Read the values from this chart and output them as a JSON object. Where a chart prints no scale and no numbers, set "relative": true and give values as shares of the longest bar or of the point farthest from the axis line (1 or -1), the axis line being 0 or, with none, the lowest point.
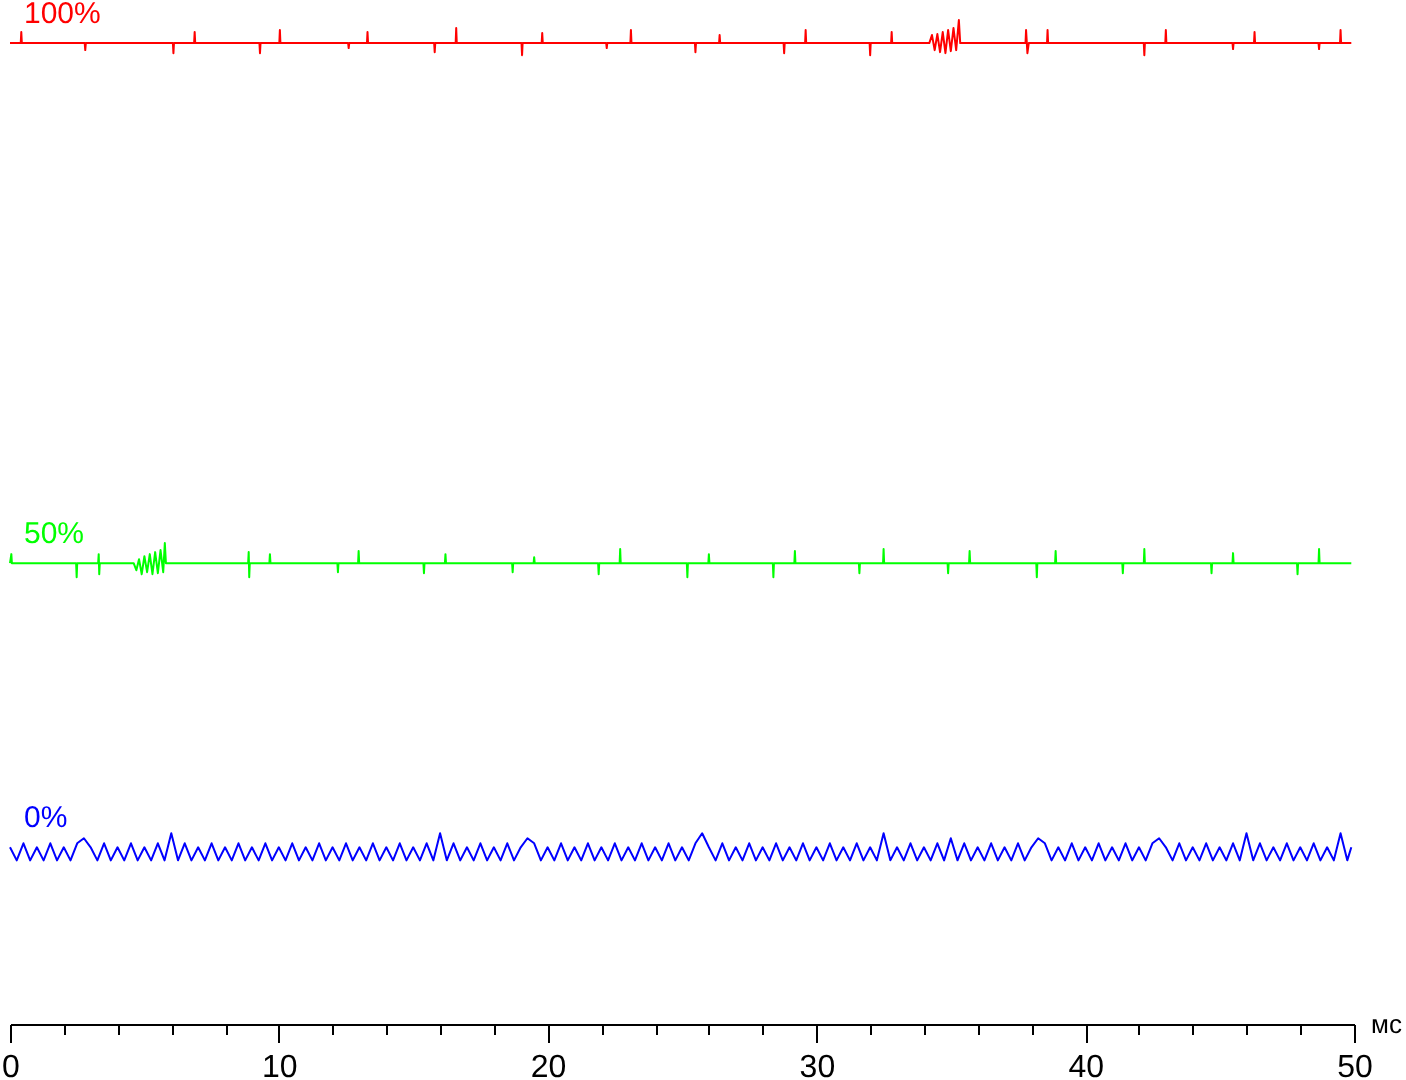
{
  "chart_data": {
    "type": "line",
    "xlabel": "мс",
    "relative": true,
    "xlim": [
      0,
      50
    ],
    "xticks": [
      0,
      {
        "value": 2,
        "label": null
      },
      {
        "value": 4,
        "label": null
      },
      {
        "value": 6,
        "label": null
      },
      {
        "value": 8,
        "label": null
      },
      10,
      {
        "value": 12,
        "label": null
      },
      {
        "value": 14,
        "label": null
      },
      {
        "value": 16,
        "label": null
      },
      {
        "value": 18,
        "label": null
      },
      20,
      {
        "value": 22,
        "label": null
      },
      {
        "value": 24,
        "label": null
      },
      {
        "value": 26,
        "label": null
      },
      {
        "value": 28,
        "label": null
      },
      30,
      {
        "value": 32,
        "label": null
      },
      {
        "value": 34,
        "label": null
      },
      {
        "value": 36,
        "label": null
      },
      {
        "value": 38,
        "label": null
      },
      40,
      {
        "value": 42,
        "label": null
      },
      {
        "value": 44,
        "label": null
      },
      {
        "value": 46,
        "label": null
      },
      {
        "value": 48,
        "label": null
      },
      50
    ],
    "series": [
      {
        "name": "100%",
        "color": "#ff0000",
        "x": [
          0,
          0.4,
          0.42,
          0.44,
          2.78,
          2.8,
          2.82,
          6.06,
          6.08,
          6.1,
          6.85,
          6.87,
          6.89,
          9.28,
          9.3,
          9.32,
          10.02,
          10.04,
          10.06,
          12.58,
          12.6,
          12.62,
          13.28,
          13.3,
          13.32,
          15.78,
          15.8,
          15.82,
          16.58,
          16.6,
          16.62,
          19.03,
          19.05,
          19.07,
          19.78,
          19.8,
          19.82,
          22.18,
          22.2,
          22.22,
          23.08,
          23.1,
          23.12,
          25.48,
          25.5,
          25.52,
          26.38,
          26.4,
          26.42,
          28.78,
          28.8,
          28.82,
          29.58,
          29.6,
          29.62,
          31.98,
          32,
          32.02,
          32.78,
          32.8,
          32.82,
          34.2,
          34.3,
          34.4,
          34.5,
          34.6,
          34.7,
          34.8,
          34.9,
          35,
          35.1,
          35.2,
          35.3,
          35.35,
          37.78,
          37.8,
          37.85,
          37.9,
          38.58,
          38.6,
          38.62,
          42.18,
          42.2,
          42.22,
          42.98,
          43,
          43.02,
          45.48,
          45.5,
          45.52,
          46.28,
          46.3,
          46.32,
          48.68,
          48.7,
          48.72,
          49.48,
          49.5,
          49.52,
          49.9
        ],
        "values": [
          0.977,
          0.977,
          0.988,
          0.977,
          0.977,
          0.97,
          0.977,
          0.977,
          0.967,
          0.977,
          0.977,
          0.988,
          0.977,
          0.977,
          0.967,
          0.977,
          0.977,
          0.99,
          0.977,
          0.977,
          0.972,
          0.977,
          0.977,
          0.988,
          0.977,
          0.977,
          0.968,
          0.977,
          0.977,
          0.992,
          0.977,
          0.977,
          0.965,
          0.977,
          0.977,
          0.987,
          0.977,
          0.977,
          0.972,
          0.977,
          0.977,
          0.99,
          0.977,
          0.977,
          0.968,
          0.977,
          0.977,
          0.985,
          0.977,
          0.977,
          0.967,
          0.977,
          0.977,
          0.99,
          0.977,
          0.977,
          0.965,
          0.977,
          0.977,
          0.988,
          0.977,
          0.977,
          0.985,
          0.97,
          0.986,
          0.968,
          0.988,
          0.967,
          0.99,
          0.969,
          0.992,
          0.97,
          1,
          0.977,
          0.977,
          0.99,
          0.967,
          0.977,
          0.977,
          0.99,
          0.977,
          0.977,
          0.965,
          0.977,
          0.977,
          0.99,
          0.977,
          0.977,
          0.971,
          0.977,
          0.977,
          0.988,
          0.977,
          0.977,
          0.971,
          0.977,
          0.977,
          0.99,
          0.977,
          0.977
        ]
      },
      {
        "name": "50%",
        "color": "#00ff00",
        "x": [
          0,
          0.05,
          0.07,
          2.46,
          2.48,
          2.5,
          3.28,
          3.3,
          3.32,
          3.34,
          4.6,
          4.7,
          4.8,
          4.9,
          5,
          5.1,
          5.2,
          5.3,
          5.4,
          5.5,
          5.6,
          5.7,
          5.76,
          5.8,
          8.86,
          8.88,
          8.9,
          8.92,
          9.65,
          9.67,
          9.69,
          12.18,
          12.2,
          12.22,
          12.95,
          12.97,
          12.99,
          15.38,
          15.4,
          15.42,
          16.18,
          16.2,
          16.22,
          18.68,
          18.7,
          18.72,
          19.48,
          19.5,
          19.52,
          21.88,
          21.9,
          21.92,
          22.68,
          22.7,
          22.72,
          25.18,
          25.2,
          25.22,
          25.98,
          26,
          26.02,
          28.38,
          28.4,
          28.42,
          29.18,
          29.2,
          29.22,
          31.58,
          31.6,
          31.62,
          32.48,
          32.5,
          32.52,
          34.88,
          34.9,
          34.92,
          35.68,
          35.7,
          35.72,
          38.18,
          38.2,
          38.22,
          38.88,
          38.9,
          38.92,
          41.38,
          41.4,
          41.42,
          42.18,
          42.2,
          42.22,
          44.68,
          44.7,
          44.72,
          45.48,
          45.5,
          45.52,
          47.88,
          47.9,
          47.92,
          48.68,
          48.7,
          48.72,
          49.9
        ],
        "values": [
          0.459,
          0.468,
          0.459,
          0.459,
          0.445,
          0.459,
          0.459,
          0.468,
          0.448,
          0.459,
          0.459,
          0.452,
          0.463,
          0.448,
          0.466,
          0.45,
          0.468,
          0.448,
          0.47,
          0.449,
          0.472,
          0.45,
          0.479,
          0.459,
          0.459,
          0.47,
          0.445,
          0.459,
          0.459,
          0.468,
          0.459,
          0.459,
          0.45,
          0.459,
          0.459,
          0.471,
          0.459,
          0.459,
          0.449,
          0.459,
          0.459,
          0.468,
          0.459,
          0.459,
          0.45,
          0.459,
          0.459,
          0.465,
          0.459,
          0.459,
          0.448,
          0.459,
          0.459,
          0.473,
          0.459,
          0.459,
          0.445,
          0.459,
          0.459,
          0.468,
          0.459,
          0.459,
          0.445,
          0.459,
          0.459,
          0.471,
          0.459,
          0.459,
          0.449,
          0.459,
          0.459,
          0.473,
          0.459,
          0.459,
          0.449,
          0.459,
          0.459,
          0.471,
          0.459,
          0.459,
          0.445,
          0.459,
          0.459,
          0.471,
          0.459,
          0.459,
          0.449,
          0.459,
          0.459,
          0.473,
          0.459,
          0.459,
          0.449,
          0.459,
          0.459,
          0.469,
          0.459,
          0.459,
          0.448,
          0.459,
          0.459,
          0.473,
          0.459,
          0.459
        ]
      },
      {
        "name": "0%",
        "color": "#0000ff",
        "x": [
          0,
          0.25,
          0.5,
          0.75,
          1,
          1.25,
          1.5,
          1.75,
          2,
          2.25,
          2.5,
          2.75,
          3,
          3.25,
          3.5,
          3.75,
          4,
          4.25,
          4.5,
          4.75,
          5,
          5.25,
          5.5,
          5.75,
          6,
          6.25,
          6.5,
          6.75,
          7,
          7.25,
          7.5,
          7.75,
          8,
          8.25,
          8.5,
          8.75,
          9,
          9.25,
          9.5,
          9.75,
          10,
          10.25,
          10.5,
          10.75,
          11,
          11.25,
          11.5,
          11.75,
          12,
          12.25,
          12.5,
          12.75,
          13,
          13.25,
          13.5,
          13.75,
          14,
          14.25,
          14.5,
          14.75,
          15,
          15.25,
          15.5,
          15.75,
          16,
          16.25,
          16.5,
          16.75,
          17,
          17.25,
          17.5,
          17.75,
          18,
          18.25,
          18.5,
          18.75,
          19,
          19.25,
          19.5,
          19.75,
          20,
          20.25,
          20.5,
          20.75,
          21,
          21.25,
          21.5,
          21.75,
          22,
          22.25,
          22.5,
          22.75,
          23,
          23.25,
          23.5,
          23.75,
          24,
          24.25,
          24.5,
          24.75,
          25,
          25.25,
          25.5,
          25.75,
          26,
          26.25,
          26.5,
          26.75,
          27,
          27.25,
          27.5,
          27.75,
          28,
          28.25,
          28.5,
          28.75,
          29,
          29.25,
          29.5,
          29.75,
          30,
          30.25,
          30.5,
          30.75,
          31,
          31.25,
          31.5,
          31.75,
          32,
          32.25,
          32.5,
          32.75,
          33,
          33.25,
          33.5,
          33.75,
          34,
          34.25,
          34.5,
          34.75,
          35,
          35.25,
          35.5,
          35.75,
          36,
          36.25,
          36.5,
          36.75,
          37,
          37.25,
          37.5,
          37.75,
          38,
          38.25,
          38.5,
          38.75,
          39,
          39.25,
          39.5,
          39.75,
          40,
          40.25,
          40.5,
          40.75,
          41,
          41.25,
          41.5,
          41.75,
          42,
          42.25,
          42.5,
          42.75,
          43,
          43.25,
          43.5,
          43.75,
          44,
          44.25,
          44.5,
          44.75,
          45,
          45.25,
          45.5,
          45.75,
          46,
          46.25,
          46.5,
          46.75,
          47,
          47.25,
          47.5,
          47.75,
          48,
          48.25,
          48.5,
          48.75,
          49,
          49.25,
          49.5,
          49.75,
          49.9
        ],
        "values": [
          0.176,
          0.163,
          0.18,
          0.163,
          0.176,
          0.163,
          0.18,
          0.163,
          0.176,
          0.163,
          0.18,
          0.185,
          0.176,
          0.163,
          0.18,
          0.163,
          0.176,
          0.163,
          0.18,
          0.163,
          0.176,
          0.163,
          0.18,
          0.163,
          0.19,
          0.163,
          0.18,
          0.163,
          0.176,
          0.163,
          0.18,
          0.163,
          0.176,
          0.163,
          0.18,
          0.163,
          0.176,
          0.163,
          0.18,
          0.163,
          0.176,
          0.163,
          0.18,
          0.163,
          0.176,
          0.163,
          0.18,
          0.163,
          0.176,
          0.163,
          0.18,
          0.163,
          0.176,
          0.163,
          0.18,
          0.163,
          0.176,
          0.163,
          0.18,
          0.163,
          0.176,
          0.163,
          0.18,
          0.163,
          0.19,
          0.163,
          0.18,
          0.163,
          0.176,
          0.163,
          0.18,
          0.163,
          0.176,
          0.163,
          0.18,
          0.163,
          0.176,
          0.185,
          0.18,
          0.163,
          0.176,
          0.163,
          0.18,
          0.163,
          0.176,
          0.163,
          0.18,
          0.163,
          0.176,
          0.163,
          0.18,
          0.163,
          0.176,
          0.163,
          0.18,
          0.163,
          0.176,
          0.163,
          0.18,
          0.163,
          0.176,
          0.163,
          0.18,
          0.19,
          0.176,
          0.163,
          0.18,
          0.163,
          0.176,
          0.163,
          0.18,
          0.163,
          0.176,
          0.163,
          0.18,
          0.163,
          0.176,
          0.163,
          0.18,
          0.163,
          0.176,
          0.163,
          0.18,
          0.163,
          0.176,
          0.163,
          0.18,
          0.163,
          0.176,
          0.163,
          0.19,
          0.163,
          0.176,
          0.163,
          0.18,
          0.163,
          0.176,
          0.163,
          0.18,
          0.163,
          0.185,
          0.163,
          0.18,
          0.163,
          0.176,
          0.163,
          0.18,
          0.163,
          0.176,
          0.163,
          0.18,
          0.163,
          0.176,
          0.185,
          0.18,
          0.163,
          0.176,
          0.163,
          0.18,
          0.163,
          0.176,
          0.163,
          0.18,
          0.163,
          0.176,
          0.163,
          0.18,
          0.163,
          0.176,
          0.163,
          0.18,
          0.185,
          0.176,
          0.163,
          0.18,
          0.163,
          0.176,
          0.163,
          0.18,
          0.163,
          0.176,
          0.163,
          0.18,
          0.163,
          0.19,
          0.163,
          0.18,
          0.163,
          0.176,
          0.163,
          0.18,
          0.163,
          0.176,
          0.163,
          0.18,
          0.163,
          0.176,
          0.163,
          0.19,
          0.163,
          0.176
        ]
      }
    ]
  }
}
